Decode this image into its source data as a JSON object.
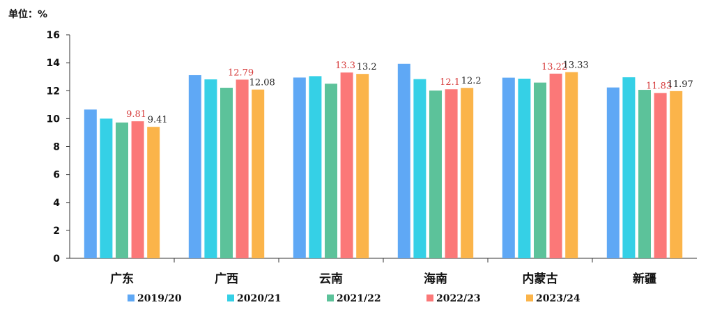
{
  "chart_data": {
    "type": "bar",
    "unit_label": "单位：%",
    "categories": [
      "广东",
      "广西",
      "云南",
      "海南",
      "内蒙古",
      "新疆"
    ],
    "series": [
      {
        "name": "2019/20",
        "color": "#5fa8f5",
        "values": [
          10.65,
          13.11,
          12.94,
          13.92,
          12.93,
          12.23
        ],
        "labeled": false
      },
      {
        "name": "2020/21",
        "color": "#35d0e6",
        "values": [
          10.0,
          12.81,
          13.04,
          12.83,
          12.86,
          12.96
        ],
        "labeled": false
      },
      {
        "name": "2021/22",
        "color": "#5cc29a",
        "values": [
          9.72,
          12.21,
          12.5,
          12.01,
          12.58,
          12.06
        ],
        "labeled": false
      },
      {
        "name": "2022/23",
        "color": "#fb7878",
        "values": [
          9.81,
          12.79,
          13.3,
          12.1,
          13.22,
          11.83
        ],
        "labeled": true,
        "label_color": "#d63a3a",
        "labels": [
          "9.81",
          "12.79",
          "13.3",
          "12.1",
          "13.22",
          "11.83"
        ]
      },
      {
        "name": "2023/24",
        "color": "#fbb44a",
        "values": [
          9.41,
          12.08,
          13.2,
          12.2,
          13.33,
          11.97
        ],
        "labeled": true,
        "label_color": "#222222",
        "labels": [
          "9.41",
          "12.08",
          "13.2",
          "12.2",
          "13.33",
          "11.97"
        ]
      }
    ],
    "ylim": [
      0,
      16
    ],
    "yticks": [
      "0",
      "2",
      "4",
      "6",
      "8",
      "10",
      "12",
      "14",
      "16"
    ],
    "grid": false,
    "legend_position": "bottom"
  }
}
